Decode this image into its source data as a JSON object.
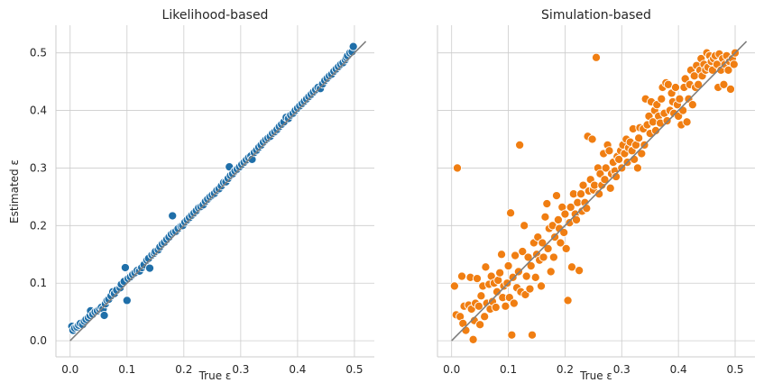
{
  "chart_data": [
    {
      "type": "scatter",
      "title": "Likelihood-based",
      "xlabel": "True ε",
      "ylabel": "Estimated ε",
      "xlim": [
        -0.025,
        0.535
      ],
      "ylim": [
        -0.028,
        0.548
      ],
      "xticks": [
        "0.0",
        "0.1",
        "0.2",
        "0.3",
        "0.4",
        "0.5"
      ],
      "yticks": [
        "0.0",
        "0.1",
        "0.2",
        "0.3",
        "0.4",
        "0.5"
      ],
      "grid": true,
      "color": "#1f6fa9",
      "reference_line": {
        "x": [
          0.0,
          0.52
        ],
        "y": [
          0.0,
          0.52
        ],
        "color": "#7f7f7f"
      },
      "points": [
        [
          0.003,
          0.025
        ],
        [
          0.005,
          0.018
        ],
        [
          0.008,
          0.022
        ],
        [
          0.012,
          0.024
        ],
        [
          0.015,
          0.027
        ],
        [
          0.018,
          0.03
        ],
        [
          0.022,
          0.028
        ],
        [
          0.025,
          0.034
        ],
        [
          0.028,
          0.037
        ],
        [
          0.032,
          0.04
        ],
        [
          0.035,
          0.044
        ],
        [
          0.036,
          0.052
        ],
        [
          0.04,
          0.046
        ],
        [
          0.044,
          0.05
        ],
        [
          0.048,
          0.052
        ],
        [
          0.052,
          0.055
        ],
        [
          0.055,
          0.058
        ],
        [
          0.058,
          0.055
        ],
        [
          0.06,
          0.044
        ],
        [
          0.062,
          0.064
        ],
        [
          0.065,
          0.07
        ],
        [
          0.068,
          0.072
        ],
        [
          0.072,
          0.078
        ],
        [
          0.075,
          0.085
        ],
        [
          0.078,
          0.082
        ],
        [
          0.082,
          0.088
        ],
        [
          0.088,
          0.092
        ],
        [
          0.09,
          0.098
        ],
        [
          0.095,
          0.103
        ],
        [
          0.097,
          0.127
        ],
        [
          0.1,
          0.07
        ],
        [
          0.102,
          0.108
        ],
        [
          0.106,
          0.111
        ],
        [
          0.11,
          0.115
        ],
        [
          0.114,
          0.118
        ],
        [
          0.118,
          0.122
        ],
        [
          0.122,
          0.121
        ],
        [
          0.126,
          0.127
        ],
        [
          0.13,
          0.132
        ],
        [
          0.135,
          0.14
        ],
        [
          0.138,
          0.143
        ],
        [
          0.14,
          0.126
        ],
        [
          0.144,
          0.149
        ],
        [
          0.148,
          0.152
        ],
        [
          0.15,
          0.155
        ],
        [
          0.155,
          0.158
        ],
        [
          0.158,
          0.163
        ],
        [
          0.162,
          0.168
        ],
        [
          0.166,
          0.171
        ],
        [
          0.17,
          0.176
        ],
        [
          0.174,
          0.18
        ],
        [
          0.178,
          0.185
        ],
        [
          0.18,
          0.217
        ],
        [
          0.182,
          0.188
        ],
        [
          0.186,
          0.19
        ],
        [
          0.19,
          0.195
        ],
        [
          0.195,
          0.199
        ],
        [
          0.198,
          0.2
        ],
        [
          0.202,
          0.206
        ],
        [
          0.206,
          0.21
        ],
        [
          0.21,
          0.214
        ],
        [
          0.214,
          0.218
        ],
        [
          0.218,
          0.222
        ],
        [
          0.222,
          0.226
        ],
        [
          0.226,
          0.231
        ],
        [
          0.23,
          0.233
        ],
        [
          0.234,
          0.236
        ],
        [
          0.238,
          0.242
        ],
        [
          0.242,
          0.246
        ],
        [
          0.246,
          0.25
        ],
        [
          0.25,
          0.253
        ],
        [
          0.254,
          0.256
        ],
        [
          0.258,
          0.261
        ],
        [
          0.262,
          0.264
        ],
        [
          0.266,
          0.269
        ],
        [
          0.27,
          0.275
        ],
        [
          0.274,
          0.276
        ],
        [
          0.278,
          0.282
        ],
        [
          0.28,
          0.302
        ],
        [
          0.282,
          0.287
        ],
        [
          0.286,
          0.29
        ],
        [
          0.29,
          0.295
        ],
        [
          0.294,
          0.298
        ],
        [
          0.298,
          0.302
        ],
        [
          0.302,
          0.306
        ],
        [
          0.306,
          0.31
        ],
        [
          0.31,
          0.314
        ],
        [
          0.314,
          0.318
        ],
        [
          0.318,
          0.321
        ],
        [
          0.32,
          0.315
        ],
        [
          0.324,
          0.327
        ],
        [
          0.328,
          0.331
        ],
        [
          0.332,
          0.336
        ],
        [
          0.336,
          0.34
        ],
        [
          0.34,
          0.345
        ],
        [
          0.344,
          0.349
        ],
        [
          0.348,
          0.352
        ],
        [
          0.352,
          0.355
        ],
        [
          0.356,
          0.36
        ],
        [
          0.36,
          0.363
        ],
        [
          0.364,
          0.367
        ],
        [
          0.368,
          0.372
        ],
        [
          0.372,
          0.376
        ],
        [
          0.376,
          0.38
        ],
        [
          0.38,
          0.388
        ],
        [
          0.384,
          0.386
        ],
        [
          0.388,
          0.392
        ],
        [
          0.392,
          0.395
        ],
        [
          0.396,
          0.4
        ],
        [
          0.4,
          0.404
        ],
        [
          0.404,
          0.408
        ],
        [
          0.408,
          0.412
        ],
        [
          0.412,
          0.416
        ],
        [
          0.416,
          0.42
        ],
        [
          0.42,
          0.424
        ],
        [
          0.424,
          0.428
        ],
        [
          0.428,
          0.432
        ],
        [
          0.432,
          0.436
        ],
        [
          0.436,
          0.44
        ],
        [
          0.44,
          0.438
        ],
        [
          0.444,
          0.446
        ],
        [
          0.448,
          0.452
        ],
        [
          0.452,
          0.456
        ],
        [
          0.456,
          0.46
        ],
        [
          0.46,
          0.463
        ],
        [
          0.464,
          0.468
        ],
        [
          0.468,
          0.472
        ],
        [
          0.472,
          0.476
        ],
        [
          0.476,
          0.48
        ],
        [
          0.48,
          0.483
        ],
        [
          0.484,
          0.488
        ],
        [
          0.486,
          0.492
        ],
        [
          0.488,
          0.495
        ],
        [
          0.492,
          0.5
        ],
        [
          0.496,
          0.502
        ],
        [
          0.498,
          0.511
        ]
      ]
    },
    {
      "type": "scatter",
      "title": "Simulation-based",
      "xlabel": "True ε",
      "ylabel": "",
      "xlim": [
        -0.025,
        0.535
      ],
      "ylim": [
        -0.028,
        0.548
      ],
      "xticks": [
        "0.0",
        "0.1",
        "0.2",
        "0.3",
        "0.4",
        "0.5"
      ],
      "yticks": [],
      "grid": true,
      "color": "#f07e12",
      "reference_line": {
        "x": [
          0.0,
          0.52
        ],
        "y": [
          0.0,
          0.52
        ],
        "color": "#7f7f7f"
      },
      "points": [
        [
          0.005,
          0.095
        ],
        [
          0.008,
          0.045
        ],
        [
          0.01,
          0.3
        ],
        [
          0.015,
          0.042
        ],
        [
          0.018,
          0.112
        ],
        [
          0.02,
          0.03
        ],
        [
          0.022,
          0.06
        ],
        [
          0.025,
          0.018
        ],
        [
          0.03,
          0.062
        ],
        [
          0.033,
          0.11
        ],
        [
          0.035,
          0.055
        ],
        [
          0.038,
          0.002
        ],
        [
          0.04,
          0.035
        ],
        [
          0.042,
          0.065
        ],
        [
          0.045,
          0.108
        ],
        [
          0.048,
          0.06
        ],
        [
          0.05,
          0.028
        ],
        [
          0.052,
          0.078
        ],
        [
          0.055,
          0.095
        ],
        [
          0.058,
          0.042
        ],
        [
          0.06,
          0.128
        ],
        [
          0.062,
          0.065
        ],
        [
          0.066,
          0.098
        ],
        [
          0.068,
          0.055
        ],
        [
          0.07,
          0.112
        ],
        [
          0.072,
          0.068
        ],
        [
          0.075,
          0.1
        ],
        [
          0.078,
          0.058
        ],
        [
          0.08,
          0.085
        ],
        [
          0.082,
          0.105
        ],
        [
          0.085,
          0.118
        ],
        [
          0.088,
          0.15
        ],
        [
          0.09,
          0.075
        ],
        [
          0.092,
          0.095
        ],
        [
          0.095,
          0.06
        ],
        [
          0.098,
          0.1
        ],
        [
          0.1,
          0.13
        ],
        [
          0.102,
          0.075
        ],
        [
          0.104,
          0.222
        ],
        [
          0.106,
          0.01
        ],
        [
          0.108,
          0.11
        ],
        [
          0.11,
          0.065
        ],
        [
          0.112,
          0.148
        ],
        [
          0.115,
          0.092
        ],
        [
          0.118,
          0.12
        ],
        [
          0.12,
          0.34
        ],
        [
          0.122,
          0.085
        ],
        [
          0.125,
          0.155
        ],
        [
          0.128,
          0.2
        ],
        [
          0.13,
          0.08
        ],
        [
          0.132,
          0.112
        ],
        [
          0.135,
          0.145
        ],
        [
          0.138,
          0.09
        ],
        [
          0.14,
          0.13
        ],
        [
          0.142,
          0.01
        ],
        [
          0.145,
          0.17
        ],
        [
          0.148,
          0.11
        ],
        [
          0.15,
          0.15
        ],
        [
          0.152,
          0.18
        ],
        [
          0.155,
          0.14
        ],
        [
          0.158,
          0.095
        ],
        [
          0.16,
          0.17
        ],
        [
          0.162,
          0.145
        ],
        [
          0.165,
          0.215
        ],
        [
          0.168,
          0.238
        ],
        [
          0.17,
          0.16
        ],
        [
          0.172,
          0.195
        ],
        [
          0.175,
          0.12
        ],
        [
          0.178,
          0.2
        ],
        [
          0.18,
          0.145
        ],
        [
          0.182,
          0.18
        ],
        [
          0.185,
          0.252
        ],
        [
          0.188,
          0.21
        ],
        [
          0.19,
          0.195
        ],
        [
          0.192,
          0.17
        ],
        [
          0.195,
          0.232
        ],
        [
          0.198,
          0.188
        ],
        [
          0.2,
          0.22
        ],
        [
          0.202,
          0.16
        ],
        [
          0.205,
          0.07
        ],
        [
          0.208,
          0.205
        ],
        [
          0.21,
          0.232
        ],
        [
          0.212,
          0.128
        ],
        [
          0.215,
          0.255
        ],
        [
          0.218,
          0.22
        ],
        [
          0.22,
          0.21
        ],
        [
          0.222,
          0.24
        ],
        [
          0.225,
          0.122
        ],
        [
          0.228,
          0.255
        ],
        [
          0.23,
          0.225
        ],
        [
          0.232,
          0.27
        ],
        [
          0.235,
          0.24
        ],
        [
          0.238,
          0.23
        ],
        [
          0.24,
          0.355
        ],
        [
          0.242,
          0.26
        ],
        [
          0.245,
          0.28
        ],
        [
          0.248,
          0.35
        ],
        [
          0.25,
          0.262
        ],
        [
          0.252,
          0.27
        ],
        [
          0.255,
          0.492
        ],
        [
          0.258,
          0.3
        ],
        [
          0.26,
          0.255
        ],
        [
          0.262,
          0.29
        ],
        [
          0.265,
          0.27
        ],
        [
          0.268,
          0.325
        ],
        [
          0.27,
          0.28
        ],
        [
          0.272,
          0.3
        ],
        [
          0.275,
          0.34
        ],
        [
          0.278,
          0.33
        ],
        [
          0.28,
          0.265
        ],
        [
          0.282,
          0.29
        ],
        [
          0.285,
          0.31
        ],
        [
          0.288,
          0.295
        ],
        [
          0.29,
          0.285
        ],
        [
          0.292,
          0.32
        ],
        [
          0.295,
          0.315
        ],
        [
          0.298,
          0.33
        ],
        [
          0.3,
          0.3
        ],
        [
          0.302,
          0.34
        ],
        [
          0.305,
          0.325
        ],
        [
          0.308,
          0.35
        ],
        [
          0.31,
          0.31
        ],
        [
          0.312,
          0.335
        ],
        [
          0.315,
          0.345
        ],
        [
          0.318,
          0.33
        ],
        [
          0.32,
          0.368
        ],
        [
          0.322,
          0.315
        ],
        [
          0.325,
          0.34
        ],
        [
          0.328,
          0.3
        ],
        [
          0.33,
          0.352
        ],
        [
          0.332,
          0.37
        ],
        [
          0.335,
          0.325
        ],
        [
          0.338,
          0.368
        ],
        [
          0.34,
          0.34
        ],
        [
          0.342,
          0.42
        ],
        [
          0.345,
          0.375
        ],
        [
          0.348,
          0.39
        ],
        [
          0.35,
          0.36
        ],
        [
          0.352,
          0.415
        ],
        [
          0.355,
          0.38
        ],
        [
          0.358,
          0.4
        ],
        [
          0.36,
          0.365
        ],
        [
          0.362,
          0.41
        ],
        [
          0.365,
          0.39
        ],
        [
          0.368,
          0.378
        ],
        [
          0.37,
          0.42
        ],
        [
          0.372,
          0.44
        ],
        [
          0.375,
          0.395
        ],
        [
          0.378,
          0.448
        ],
        [
          0.38,
          0.382
        ],
        [
          0.382,
          0.445
        ],
        [
          0.385,
          0.4
        ],
        [
          0.388,
          0.43
        ],
        [
          0.39,
          0.415
        ],
        [
          0.392,
          0.395
        ],
        [
          0.395,
          0.44
        ],
        [
          0.398,
          0.41
        ],
        [
          0.4,
          0.39
        ],
        [
          0.402,
          0.42
        ],
        [
          0.405,
          0.375
        ],
        [
          0.408,
          0.4
        ],
        [
          0.41,
          0.44
        ],
        [
          0.412,
          0.455
        ],
        [
          0.415,
          0.38
        ],
        [
          0.418,
          0.42
        ],
        [
          0.42,
          0.445
        ],
        [
          0.422,
          0.47
        ],
        [
          0.425,
          0.41
        ],
        [
          0.428,
          0.46
        ],
        [
          0.43,
          0.44
        ],
        [
          0.432,
          0.478
        ],
        [
          0.435,
          0.445
        ],
        [
          0.438,
          0.47
        ],
        [
          0.44,
          0.49
        ],
        [
          0.442,
          0.46
        ],
        [
          0.445,
          0.48
        ],
        [
          0.448,
          0.47
        ],
        [
          0.45,
          0.5
        ],
        [
          0.452,
          0.475
        ],
        [
          0.455,
          0.495
        ],
        [
          0.458,
          0.485
        ],
        [
          0.46,
          0.47
        ],
        [
          0.462,
          0.49
        ],
        [
          0.465,
          0.495
        ],
        [
          0.468,
          0.48
        ],
        [
          0.47,
          0.44
        ],
        [
          0.472,
          0.498
        ],
        [
          0.475,
          0.47
        ],
        [
          0.478,
          0.49
        ],
        [
          0.48,
          0.445
        ],
        [
          0.482,
          0.48
        ],
        [
          0.485,
          0.495
        ],
        [
          0.488,
          0.47
        ],
        [
          0.49,
          0.485
        ],
        [
          0.492,
          0.437
        ],
        [
          0.495,
          0.49
        ],
        [
          0.498,
          0.48
        ],
        [
          0.5,
          0.5
        ]
      ]
    }
  ]
}
